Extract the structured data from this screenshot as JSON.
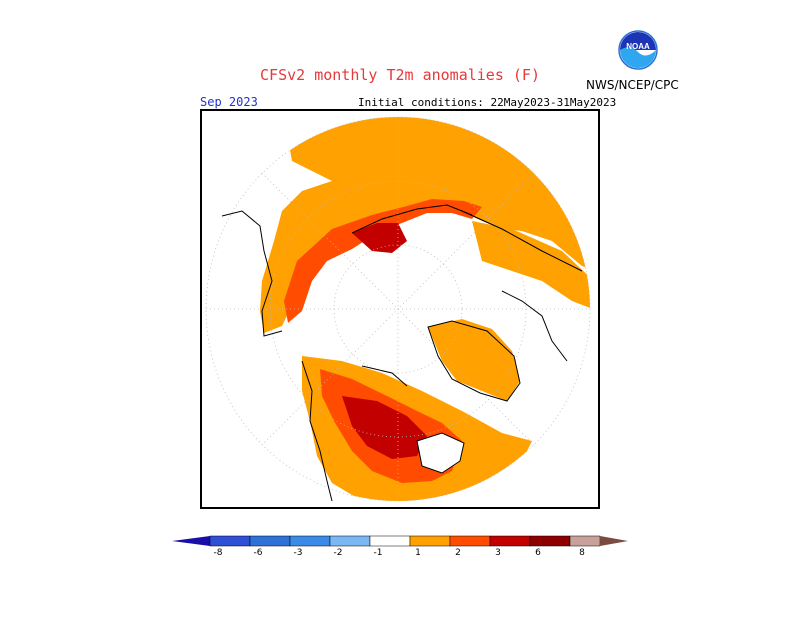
{
  "header": {
    "title": "CFSv2 monthly T2m anomalies (F)",
    "agency": "NWS/NCEP/CPC",
    "logo_text": "NOAA",
    "target_month": "Sep 2023",
    "initial_conditions": "Initial conditions: 22May2023-31May2023"
  },
  "map": {
    "projection": "north-polar-stereographic",
    "variable": "2m temperature anomaly",
    "units": "F",
    "regions": [
      {
        "region": "Siberia/Eurasian Arctic coast",
        "category": "1 to 3, locally 3 to 6"
      },
      {
        "region": "Canada/Hudson Bay",
        "category": "3 to 6 core, 1 to 3 surrounding"
      },
      {
        "region": "Greenland",
        "category": "1 to 2"
      },
      {
        "region": "Western North America",
        "category": "1 to 2"
      },
      {
        "region": "Europe",
        "category": "1 to 2 scattered"
      },
      {
        "region": "Arctic Ocean / North Pole",
        "category": "-1 to 1"
      }
    ]
  },
  "colorbar": {
    "labels": [
      "-8",
      "-6",
      "-3",
      "-2",
      "-1",
      "1",
      "2",
      "3",
      "6",
      "8"
    ],
    "colors": [
      "#1a0ea8",
      "#2f4fd6",
      "#2e72d8",
      "#4a98f0",
      "#7ab8f5",
      "#ffffff",
      "#ffa100",
      "#ff4c00",
      "#c20000",
      "#8e0000",
      "#c8a29a",
      "#7b4b40"
    ]
  }
}
